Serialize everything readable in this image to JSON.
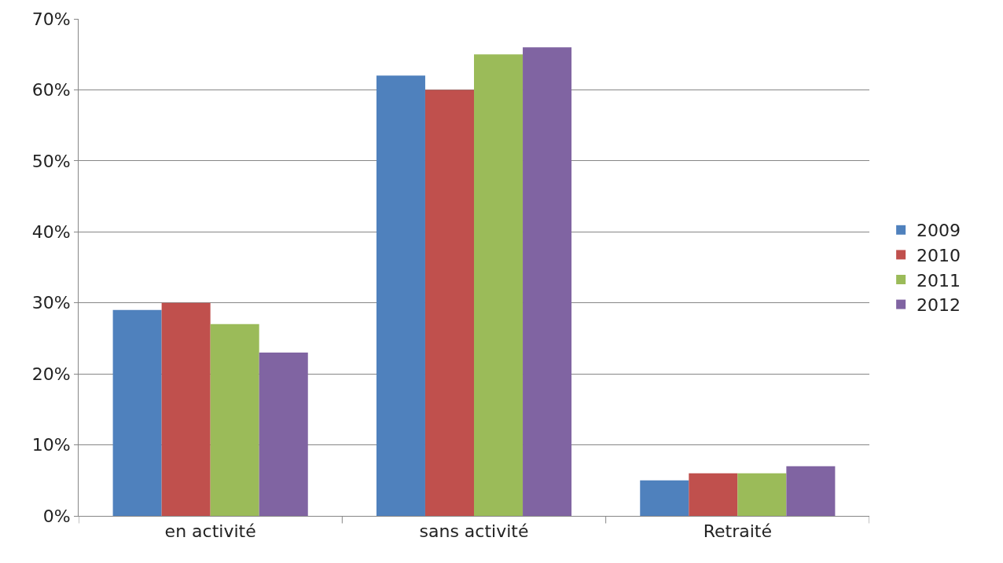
{
  "chart_data": {
    "type": "bar",
    "categories": [
      "en activité",
      "sans activité",
      "Retraité"
    ],
    "series": [
      {
        "name": "2009",
        "color": "#4f81bd",
        "values": [
          29,
          62,
          5
        ]
      },
      {
        "name": "2010",
        "color": "#c0504d",
        "values": [
          30,
          60,
          6
        ]
      },
      {
        "name": "2011",
        "color": "#9bbb59",
        "values": [
          27,
          65,
          6
        ]
      },
      {
        "name": "2012",
        "color": "#8064a2",
        "values": [
          23,
          66,
          7
        ]
      }
    ],
    "ylim": [
      0,
      70
    ],
    "yticks": [
      {
        "value": 0,
        "label": "0%"
      },
      {
        "value": 10,
        "label": "10%"
      },
      {
        "value": 20,
        "label": "20%"
      },
      {
        "value": 30,
        "label": "30%"
      },
      {
        "value": 40,
        "label": "40%"
      },
      {
        "value": 50,
        "label": "50%"
      },
      {
        "value": 60,
        "label": "60%"
      },
      {
        "value": 70,
        "label": "70%"
      }
    ],
    "grid": "y",
    "legend": "right"
  }
}
